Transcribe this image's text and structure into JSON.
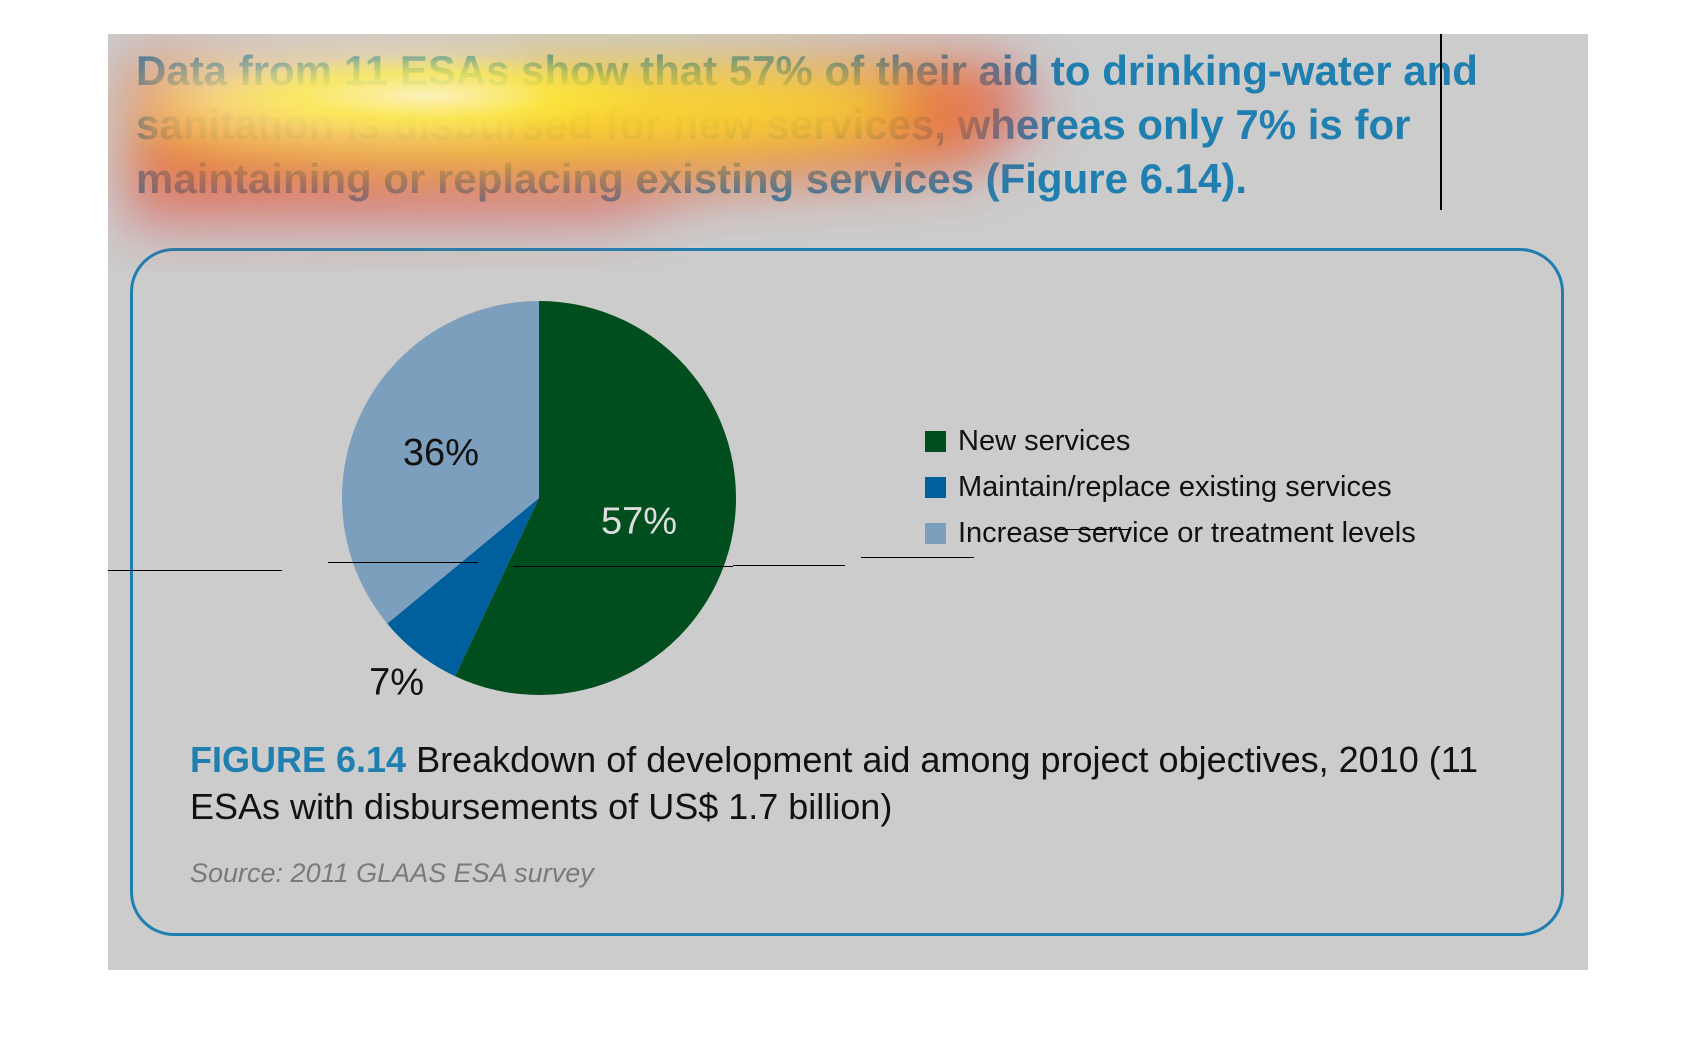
{
  "headline": "Data from 11 ESAs show that 57% of their aid to drinking-water and sanitation is disbursed for new services, whereas only 7% is for maintaining or replacing existing services (Figure 6.14).",
  "chart_data": {
    "type": "pie",
    "title": "",
    "slices": [
      {
        "name": "New services",
        "value": 57,
        "label": "57%",
        "color": "#004d1e",
        "label_color": "#dddddd"
      },
      {
        "name": "Maintain/replace existing services",
        "value": 7,
        "label": "7%",
        "color": "#00609e",
        "label_color": "#111111"
      },
      {
        "name": "Increase service or treatment levels",
        "value": 36,
        "label": "36%",
        "color": "#7b9fbd",
        "label_color": "#111111"
      }
    ],
    "start": "12 o'clock",
    "direction": "clockwise",
    "legend_position": "right"
  },
  "legend": {
    "items": [
      {
        "label": "New services",
        "color": "#004d1e"
      },
      {
        "label": "Maintain/replace existing services",
        "color": "#00609e"
      },
      {
        "label": "Increase service or treatment levels",
        "color": "#7b9fbd"
      }
    ]
  },
  "caption": {
    "label": "FIGURE 6.14",
    "text": "Breakdown of development aid among project objectives, 2010 (11 ESAs with disbursements of US$ 1.7 billion)"
  },
  "source": "Source: 2011 GLAAS ESA survey",
  "colors": {
    "background": "#cccccc",
    "accent": "#1e7fb0",
    "frame": "#1e7fb0"
  }
}
